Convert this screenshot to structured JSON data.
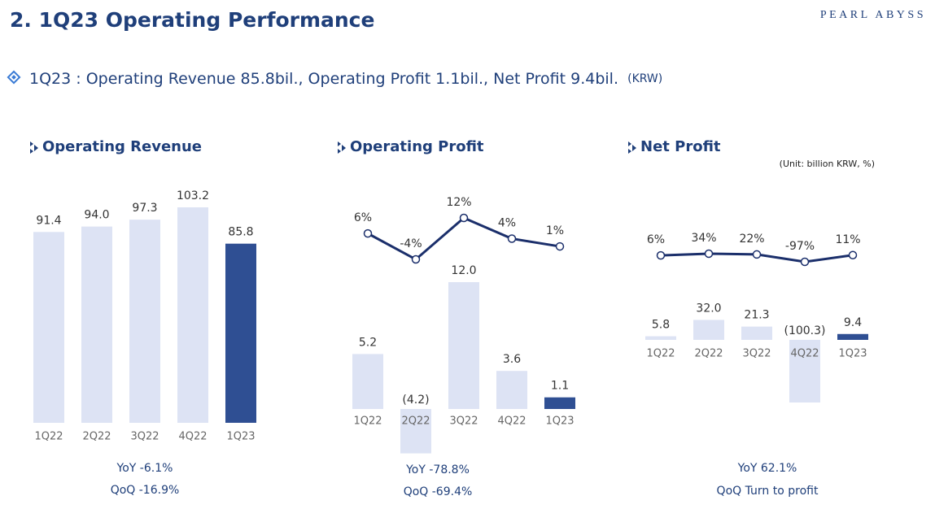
{
  "title": "2. 1Q23 Operating Performance",
  "brand": "PEARL ABYSS",
  "subtitle": {
    "text": "1Q23 : Operating Revenue 85.8bil., Operating Profit  1.1bil., Net Profit  9.4bil.",
    "unit": "(KRW)"
  },
  "chart_data": [
    {
      "type": "bar",
      "title": "Operating Revenue",
      "categories": [
        "1Q22",
        "2Q22",
        "3Q22",
        "4Q22",
        "1Q23"
      ],
      "values": [
        91.4,
        94.0,
        97.3,
        103.2,
        85.8
      ],
      "value_labels": [
        "91.4",
        "94.0",
        "97.3",
        "103.2",
        "85.8"
      ],
      "colors": [
        "#dde3f4",
        "#dde3f4",
        "#dde3f4",
        "#dde3f4",
        "#2f4f93"
      ],
      "notes": [
        "YoY  -6.1%",
        "QoQ  -16.9%"
      ]
    },
    {
      "type": "combo",
      "title": "Operating Profit",
      "categories": [
        "1Q22",
        "2Q22",
        "3Q22",
        "4Q22",
        "1Q23"
      ],
      "values": [
        5.2,
        -4.2,
        12.0,
        3.6,
        1.1
      ],
      "value_labels": [
        "5.2",
        "(4.2)",
        "12.0",
        "3.6",
        "1.1"
      ],
      "colors": [
        "#dde3f4",
        "#dde3f4",
        "#dde3f4",
        "#dde3f4",
        "#2f4f93"
      ],
      "line": {
        "values": [
          6,
          -4,
          12,
          4,
          1
        ],
        "value_labels": [
          "6%",
          "-4%",
          "12%",
          "4%",
          "1%"
        ],
        "color": "#1b2f6b"
      },
      "notes": [
        "YoY  -78.8%",
        "QoQ  -69.4%"
      ]
    },
    {
      "type": "combo",
      "title": "Net Profit",
      "unit_note": "(Unit: billion KRW, %)",
      "categories": [
        "1Q22",
        "2Q22",
        "3Q22",
        "4Q22",
        "1Q23"
      ],
      "values": [
        5.8,
        32.0,
        21.3,
        -100.3,
        9.4
      ],
      "value_labels": [
        "5.8",
        "32.0",
        "21.3",
        "(100.3)",
        "9.4"
      ],
      "colors": [
        "#dde3f4",
        "#dde3f4",
        "#dde3f4",
        "#dde3f4",
        "#2f4f93"
      ],
      "line": {
        "values": [
          6,
          34,
          22,
          -97,
          11
        ],
        "value_labels": [
          "6%",
          "34%",
          "22%",
          "-97%",
          "11%"
        ],
        "color": "#1b2f6b"
      },
      "notes": [
        "YoY  62.1%",
        "QoQ  Turn to profit"
      ]
    }
  ]
}
